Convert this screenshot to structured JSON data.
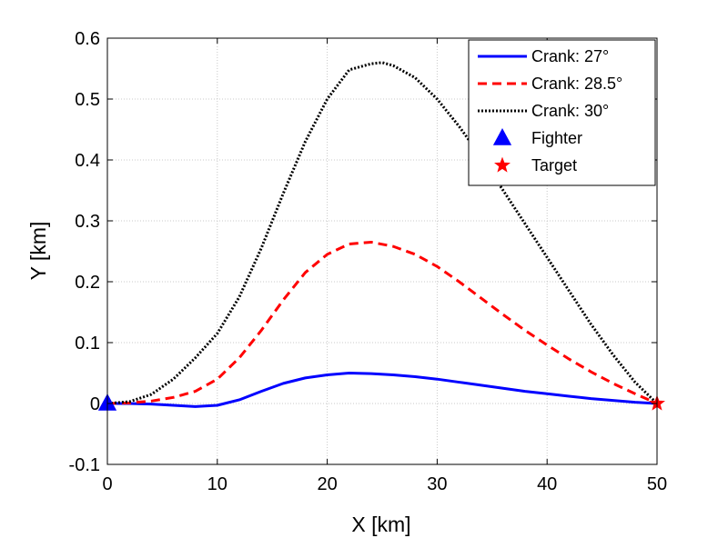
{
  "chart_data": {
    "type": "line",
    "title": "",
    "xlabel": "X [km]",
    "ylabel": "Y [km]",
    "xlim": [
      0,
      50
    ],
    "ylim": [
      -0.1,
      0.6
    ],
    "xticks": [
      0,
      10,
      20,
      30,
      40,
      50
    ],
    "yticks": [
      -0.1,
      0,
      0.1,
      0.2,
      0.3,
      0.4,
      0.5,
      0.6
    ],
    "xtick_labels": [
      "0",
      "10",
      "20",
      "30",
      "40",
      "50"
    ],
    "ytick_labels": [
      "-0.1",
      "0",
      "0.1",
      "0.2",
      "0.3",
      "0.4",
      "0.5",
      "0.6"
    ],
    "grid": true,
    "legend_position": "top-right",
    "series": [
      {
        "name": "Crank: 27°",
        "color": "#0000ff",
        "style": "solid",
        "x": [
          0,
          2,
          4,
          6,
          8,
          10,
          12,
          14,
          16,
          18,
          20,
          22,
          24,
          26,
          28,
          30,
          32,
          34,
          36,
          38,
          40,
          42,
          44,
          46,
          48,
          50
        ],
        "y": [
          0,
          0,
          -0.001,
          -0.003,
          -0.005,
          -0.003,
          0.006,
          0.02,
          0.033,
          0.042,
          0.047,
          0.05,
          0.049,
          0.047,
          0.044,
          0.04,
          0.035,
          0.03,
          0.025,
          0.02,
          0.016,
          0.012,
          0.008,
          0.005,
          0.002,
          0
        ]
      },
      {
        "name": "Crank: 28.5°",
        "color": "#ff0000",
        "style": "dashed",
        "x": [
          0,
          2,
          4,
          6,
          8,
          10,
          12,
          14,
          16,
          18,
          20,
          22,
          24,
          26,
          28,
          30,
          32,
          34,
          36,
          38,
          40,
          42,
          44,
          46,
          48,
          50
        ],
        "y": [
          0,
          0.001,
          0.004,
          0.01,
          0.02,
          0.04,
          0.075,
          0.12,
          0.17,
          0.215,
          0.245,
          0.262,
          0.265,
          0.258,
          0.245,
          0.225,
          0.2,
          0.173,
          0.146,
          0.12,
          0.096,
          0.073,
          0.052,
          0.033,
          0.016,
          0
        ]
      },
      {
        "name": "Crank: 30°",
        "color": "#000000",
        "style": "dotted",
        "x": [
          0,
          2,
          4,
          6,
          8,
          10,
          12,
          14,
          16,
          18,
          20,
          22,
          24,
          25,
          26,
          28,
          30,
          32,
          34,
          36,
          38,
          40,
          42,
          44,
          46,
          48,
          50
        ],
        "y": [
          0,
          0.003,
          0.015,
          0.04,
          0.075,
          0.115,
          0.175,
          0.255,
          0.345,
          0.43,
          0.5,
          0.548,
          0.558,
          0.56,
          0.555,
          0.535,
          0.5,
          0.455,
          0.405,
          0.35,
          0.295,
          0.24,
          0.185,
          0.13,
          0.08,
          0.035,
          0
        ]
      }
    ],
    "markers": [
      {
        "name": "Fighter",
        "shape": "triangle",
        "color": "#0000ff",
        "x": 0,
        "y": 0
      },
      {
        "name": "Target",
        "shape": "star",
        "color": "#ff0000",
        "x": 50,
        "y": 0
      }
    ]
  }
}
